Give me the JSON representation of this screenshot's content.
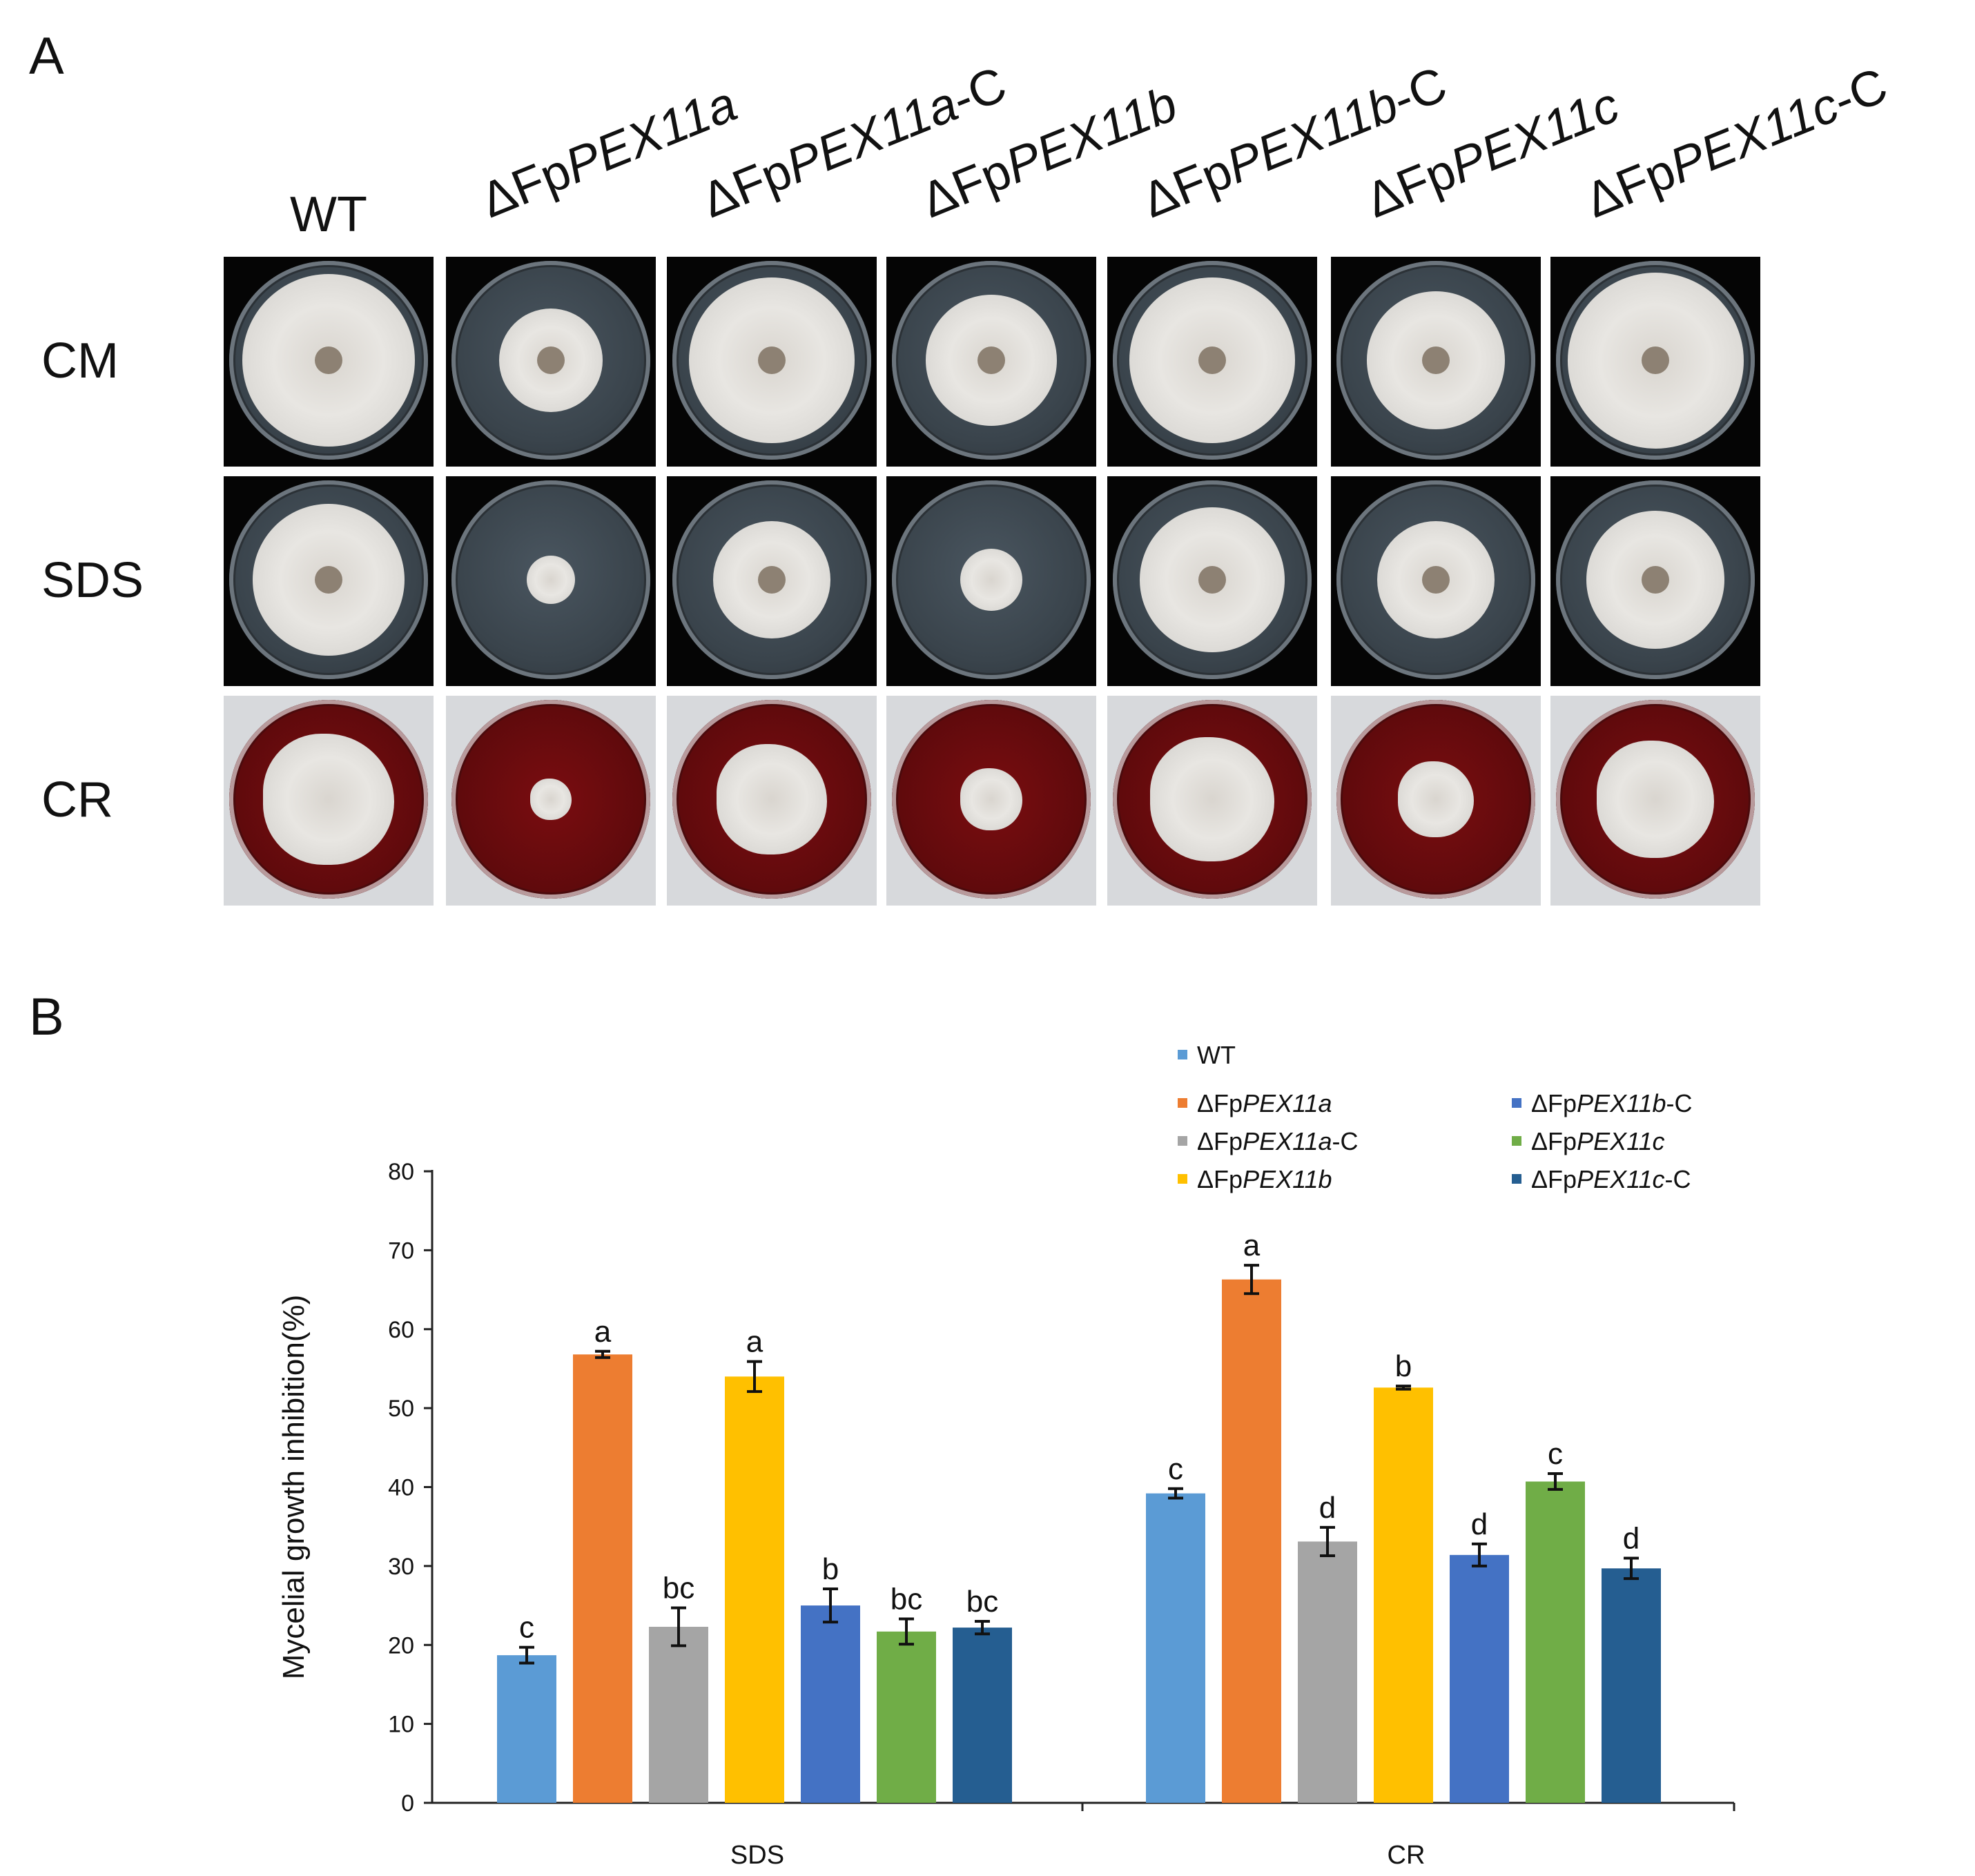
{
  "panel_a": {
    "letter": "A",
    "column_labels": [
      {
        "prefix": "",
        "italic": "",
        "suffix": "WT"
      },
      {
        "prefix": "ΔFp",
        "italic": "PEX11a",
        "suffix": ""
      },
      {
        "prefix": "ΔFp",
        "italic": "PEX11a",
        "suffix": "-C"
      },
      {
        "prefix": "ΔFp",
        "italic": "PEX11b",
        "suffix": ""
      },
      {
        "prefix": "ΔFp",
        "italic": "PEX11b",
        "suffix": "-C"
      },
      {
        "prefix": "ΔFp",
        "italic": "PEX11c",
        "suffix": ""
      },
      {
        "prefix": "ΔFp",
        "italic": "PEX11c",
        "suffix": "-C"
      }
    ],
    "row_labels": [
      "CM",
      "SDS",
      "CR"
    ]
  },
  "panel_b": {
    "letter": "B",
    "legend": [
      {
        "prefix": "",
        "italic": "",
        "suffix": "WT",
        "color": "#5b9bd5"
      },
      {
        "prefix": "ΔFp",
        "italic": "PEX11a",
        "suffix": "",
        "color": "#ed7d31"
      },
      {
        "prefix": "ΔFp",
        "italic": "PEX11a",
        "suffix": "-C",
        "color": "#a5a5a5"
      },
      {
        "prefix": "ΔFp",
        "italic": "PEX11b",
        "suffix": "",
        "color": "#ffc000"
      },
      {
        "prefix": "ΔFp",
        "italic": "PEX11b",
        "suffix": "-C",
        "color": "#4472c4"
      },
      {
        "prefix": "ΔFp",
        "italic": "PEX11c",
        "suffix": "",
        "color": "#70ad47"
      },
      {
        "prefix": "ΔFp",
        "italic": "PEX11c",
        "suffix": "-C",
        "color": "#255e91"
      }
    ]
  },
  "chart_data": {
    "type": "bar",
    "categories": [
      "SDS",
      "CR"
    ],
    "ylabel": "Mycelial growth inhibition(%)",
    "ylim": [
      0,
      80
    ],
    "yticks": [
      0,
      10,
      20,
      30,
      40,
      50,
      60,
      70,
      80
    ],
    "grid": false,
    "legend_position": "top-right",
    "series": [
      {
        "name": "WT",
        "color": "#5b9bd5",
        "values": [
          18.7,
          39.2
        ],
        "errors": [
          1.0,
          0.6
        ],
        "letters": [
          "c",
          "c"
        ]
      },
      {
        "name": "ΔFpPEX11a",
        "color": "#ed7d31",
        "values": [
          56.8,
          66.3
        ],
        "errors": [
          0.4,
          1.8
        ],
        "letters": [
          "a",
          "a"
        ]
      },
      {
        "name": "ΔFpPEX11a-C",
        "color": "#a5a5a5",
        "values": [
          22.3,
          33.1
        ],
        "errors": [
          2.4,
          1.8
        ],
        "letters": [
          "bc",
          "d"
        ]
      },
      {
        "name": "ΔFpPEX11b",
        "color": "#ffc000",
        "values": [
          54.0,
          52.6
        ],
        "errors": [
          1.9,
          0.2
        ],
        "letters": [
          "a",
          "b"
        ]
      },
      {
        "name": "ΔFpPEX11b-C",
        "color": "#4472c4",
        "values": [
          25.0,
          31.4
        ],
        "errors": [
          2.1,
          1.4
        ],
        "letters": [
          "b",
          "d"
        ]
      },
      {
        "name": "ΔFpPEX11c",
        "color": "#70ad47",
        "values": [
          21.7,
          40.7
        ],
        "errors": [
          1.6,
          1.0
        ],
        "letters": [
          "bc",
          "c"
        ]
      },
      {
        "name": "ΔFpPEX11c-C",
        "color": "#255e91",
        "values": [
          22.2,
          29.7
        ],
        "errors": [
          0.8,
          1.3
        ],
        "letters": [
          "bc",
          "d"
        ]
      }
    ]
  }
}
